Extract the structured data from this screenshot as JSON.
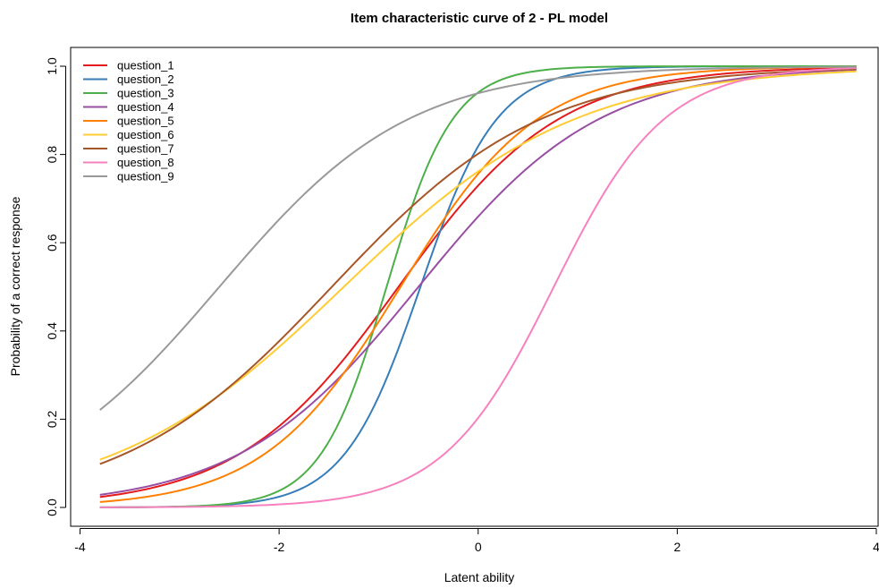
{
  "chart_data": {
    "type": "line",
    "title": "Item characteristic curve of 2 - PL model",
    "xlabel": "Latent ability",
    "ylabel": "Probability of a correct response",
    "xlim": [
      -4,
      4
    ],
    "ylim": [
      0,
      1
    ],
    "x_range": [
      -3.8,
      3.8
    ],
    "x_ticks": [
      "-4",
      "-2",
      "0",
      "2",
      "4"
    ],
    "y_ticks": [
      "0.0",
      "0.2",
      "0.4",
      "0.6",
      "0.8",
      "1.0"
    ],
    "grid": false,
    "legend_position": "top-left",
    "series": [
      {
        "name": "question_1",
        "color": "#e41a1c",
        "a": 1.24,
        "b": -0.8
      },
      {
        "name": "question_2",
        "color": "#377eb8",
        "a": 2.6,
        "b": -0.58
      },
      {
        "name": "question_3",
        "color": "#4daf4a",
        "a": 3.0,
        "b": -0.92
      },
      {
        "name": "question_4",
        "color": "#984ea3",
        "a": 1.1,
        "b": -0.6
      },
      {
        "name": "question_5",
        "color": "#ff7f00",
        "a": 1.45,
        "b": -0.78
      },
      {
        "name": "question_6",
        "color": "#ffcc33",
        "a": 0.86,
        "b": -1.35
      },
      {
        "name": "question_7",
        "color": "#a65628",
        "a": 0.95,
        "b": -1.47
      },
      {
        "name": "question_8",
        "color": "#f781bf",
        "a": 1.8,
        "b": 0.76
      },
      {
        "name": "question_9",
        "color": "#999999",
        "a": 1.05,
        "b": -2.6
      }
    ]
  }
}
